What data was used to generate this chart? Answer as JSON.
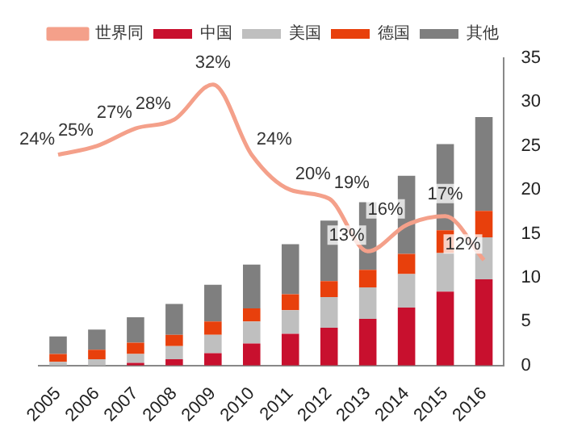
{
  "chart_data": {
    "type": "bar",
    "stacked": true,
    "categories": [
      "2005",
      "2006",
      "2007",
      "2008",
      "2009",
      "2010",
      "2011",
      "2012",
      "2013",
      "2014",
      "2015",
      "2016"
    ],
    "series": [
      {
        "name": "中国",
        "color": "#c8102e",
        "values": [
          null,
          null,
          0.3,
          0.7,
          1.4,
          2.5,
          3.6,
          4.3,
          5.3,
          6.6,
          8.4,
          9.8
        ]
      },
      {
        "name": "美国",
        "color": "#bfbfbf",
        "values": [
          0.4,
          0.7,
          1.0,
          1.5,
          2.1,
          2.5,
          2.7,
          3.5,
          3.6,
          3.8,
          4.4,
          4.8
        ]
      },
      {
        "name": "德国",
        "color": "#e8400c",
        "values": [
          0.9,
          1.1,
          1.3,
          1.3,
          1.5,
          1.5,
          1.8,
          1.8,
          2.0,
          2.3,
          2.6,
          3.0
        ]
      },
      {
        "name": "其他",
        "color": "#7f7f7f",
        "values": [
          2.0,
          2.3,
          2.9,
          3.5,
          4.2,
          5.0,
          5.7,
          6.9,
          7.7,
          8.9,
          9.8,
          10.7
        ]
      },
      {
        "name": "世界同",
        "type": "line",
        "color": "#f4a08a",
        "values": [
          24,
          25,
          27,
          28,
          32,
          24,
          20,
          19,
          13,
          16,
          17,
          12
        ],
        "value_labels": [
          "24%",
          "25%",
          "27%",
          "28%",
          "32%",
          "24%",
          "20%",
          "19%",
          "13%",
          "16%",
          "17%",
          "12%"
        ]
      }
    ],
    "ylim": [
      0,
      35
    ],
    "yticks": [
      0,
      5,
      10,
      15,
      20,
      25,
      30,
      35
    ],
    "grid": false,
    "legend": "top",
    "marker": "none"
  }
}
